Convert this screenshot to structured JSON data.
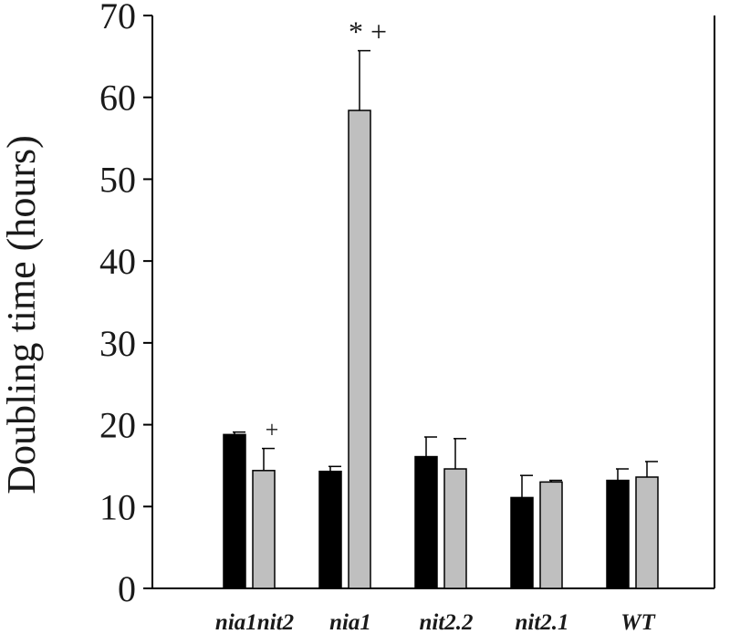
{
  "chart_data": {
    "type": "bar",
    "title": "",
    "xlabel": "",
    "ylabel": "Doubling time (hours)",
    "ylim": [
      0,
      70
    ],
    "yticks": [
      "0",
      "10",
      "20",
      "30",
      "40",
      "50",
      "60",
      "70"
    ],
    "grid": false,
    "categories": [
      "nia1nit2",
      "nia1",
      "nit2.2",
      "nit2.1",
      "WT"
    ],
    "series": [
      {
        "color": "#000000",
        "values": [
          18.8,
          14.3,
          16.1,
          11.1,
          13.2
        ],
        "errors": [
          0.3,
          0.6,
          2.4,
          2.7,
          1.4
        ]
      },
      {
        "color": "#bfbfbf",
        "values": [
          14.4,
          58.4,
          14.6,
          13.0,
          13.6
        ],
        "errors": [
          2.7,
          7.3,
          3.7,
          0.2,
          1.9
        ]
      }
    ],
    "annotations": [
      {
        "category": 0,
        "series": 1,
        "text": "+"
      },
      {
        "category": 1,
        "series": 1,
        "text": "* +"
      }
    ]
  }
}
